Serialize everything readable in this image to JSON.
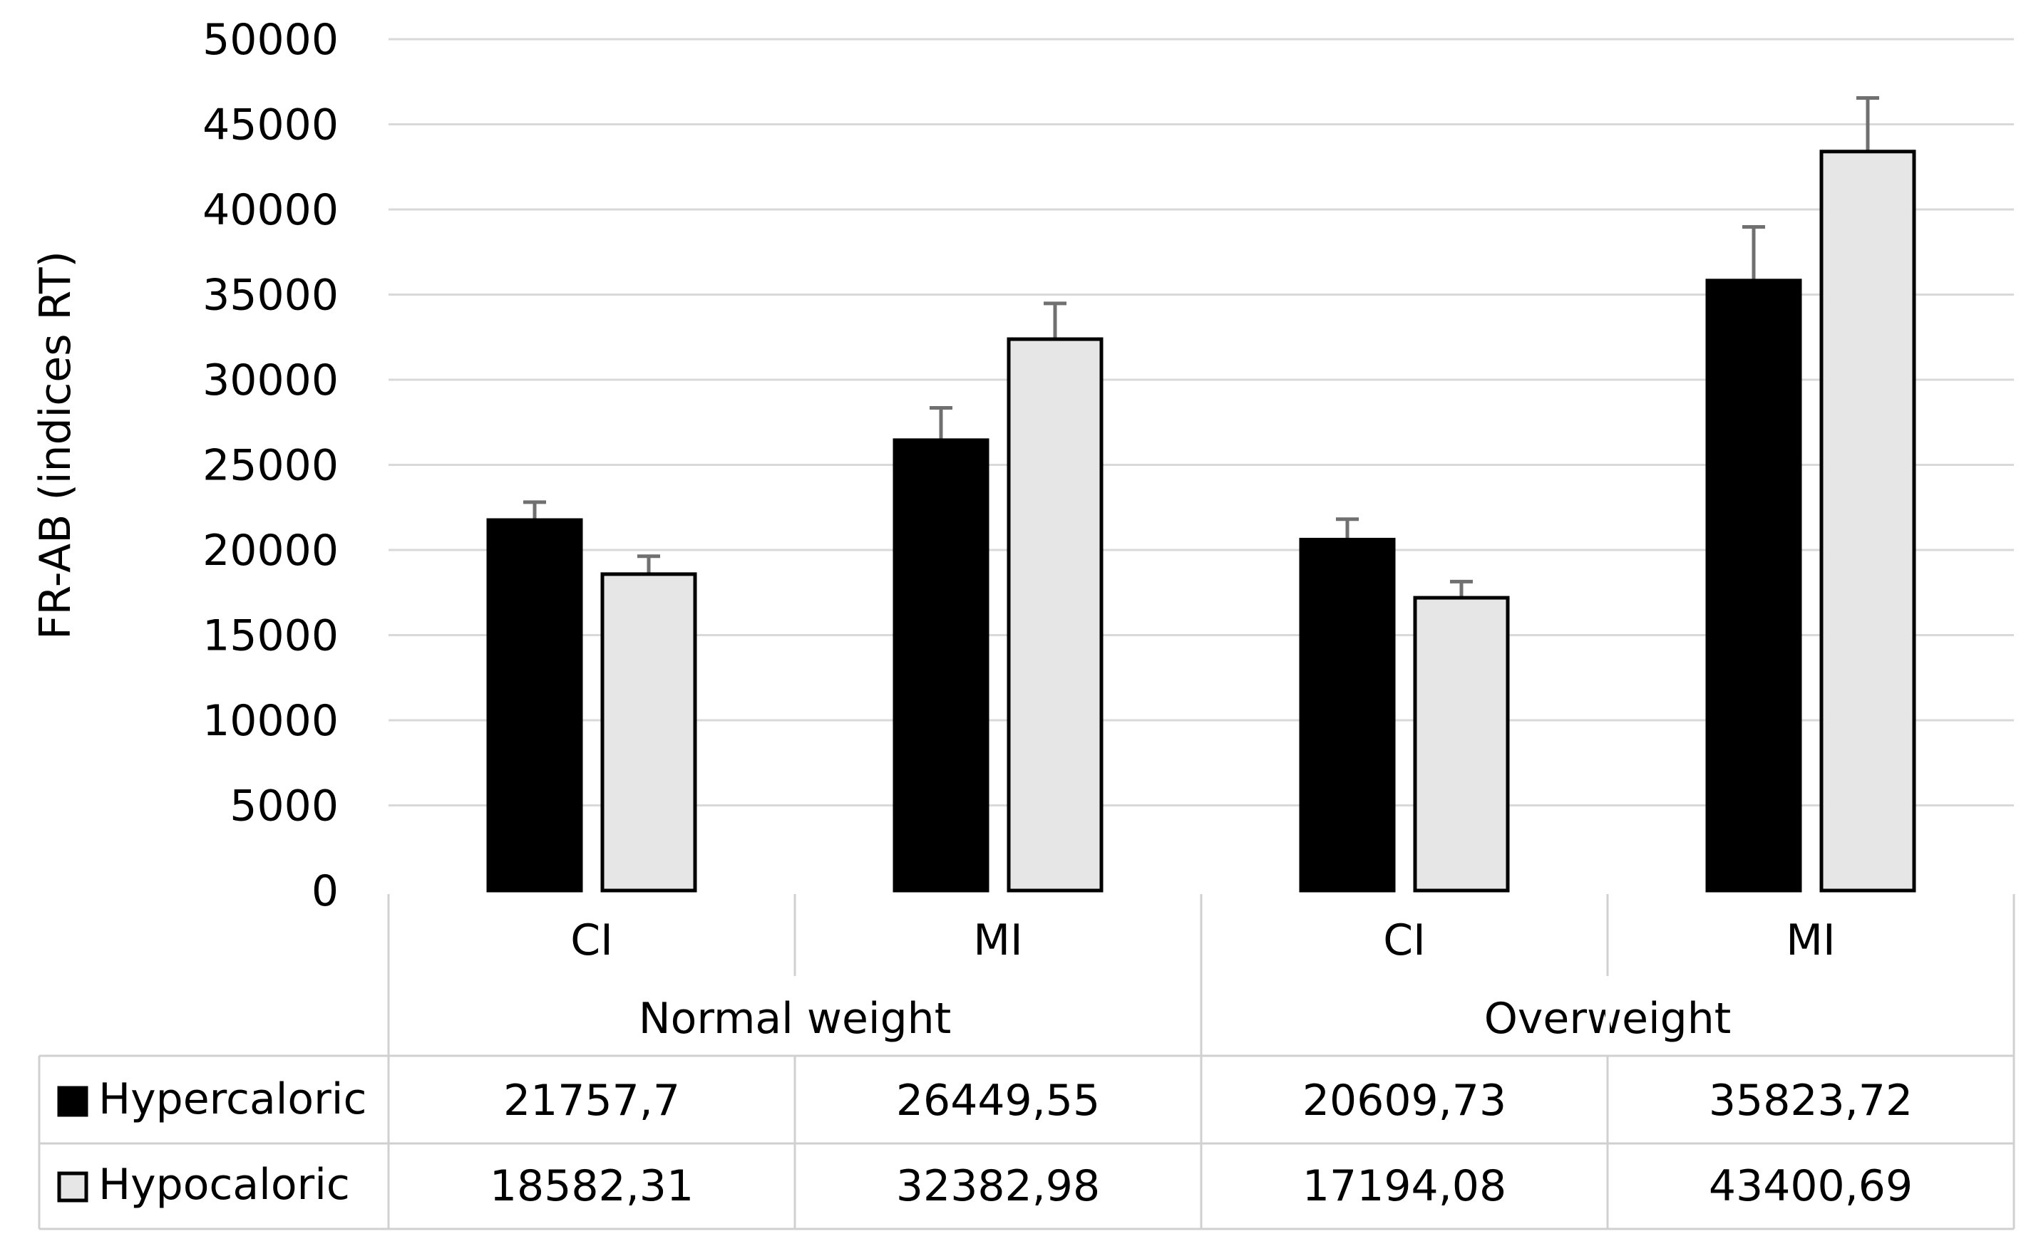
{
  "chart_data": {
    "type": "bar",
    "ylabel": "FR-AB (indices RT)",
    "ylim": [
      0,
      50000
    ],
    "yticks": [
      0,
      5000,
      10000,
      15000,
      20000,
      25000,
      30000,
      35000,
      40000,
      45000,
      50000
    ],
    "grid": true,
    "legend_placement": "data-table-left",
    "groups": [
      {
        "label": "Normal weight",
        "categories": [
          "CI",
          "MI"
        ]
      },
      {
        "label": "Overweight",
        "categories": [
          "CI",
          "MI"
        ]
      }
    ],
    "categories": [
      "CI",
      "MI",
      "CI",
      "MI"
    ],
    "series": [
      {
        "name": "Hypercaloric",
        "color": "#000000",
        "values": [
          21757.7,
          26449.55,
          20609.73,
          35823.72
        ],
        "labels": [
          "21757,7",
          "26449,55",
          "20609,73",
          "35823,72"
        ],
        "errors": [
          1050,
          1900,
          1200,
          3150
        ]
      },
      {
        "name": "Hypocaloric",
        "color": "#e6e6e6",
        "values": [
          18582.31,
          32382.98,
          17194.08,
          43400.69
        ],
        "labels": [
          "18582,31",
          "32382,98",
          "17194,08",
          "43400,69"
        ],
        "errors": [
          1050,
          2100,
          950,
          3150
        ]
      }
    ]
  }
}
